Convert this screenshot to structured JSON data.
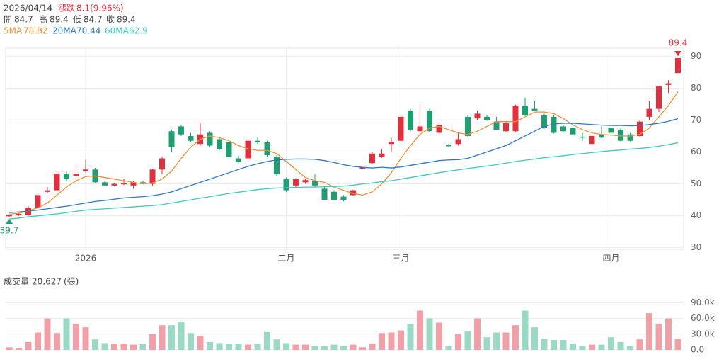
{
  "header": {
    "date": "2026/04/14",
    "change_label": "漲跌",
    "change": "8.1(9.96%)",
    "quote_labels": [
      "開",
      "高",
      "低",
      "收"
    ],
    "volume_title": "成交量",
    "volume_last": "20,627",
    "volume_unit": "(張)"
  },
  "chart_data": [
    {
      "type": "candlestick",
      "categories": [
        null,
        null,
        null,
        null,
        null,
        null,
        null,
        null,
        "2026",
        null,
        null,
        null,
        null,
        null,
        null,
        null,
        null,
        null,
        null,
        null,
        null,
        null,
        null,
        null,
        null,
        null,
        null,
        null,
        null,
        "二月",
        null,
        null,
        null,
        null,
        null,
        null,
        null,
        null,
        null,
        null,
        null,
        "三月",
        null,
        null,
        null,
        null,
        null,
        null,
        null,
        null,
        null,
        null,
        null,
        null,
        null,
        null,
        null,
        null,
        null,
        null,
        null,
        null,
        null,
        "四月",
        null,
        null,
        null,
        null,
        null,
        null,
        null
      ],
      "open": [
        40,
        40.2,
        40.2,
        42.5,
        47.5,
        48,
        53,
        52.5,
        54,
        54.5,
        50.5,
        49.5,
        50,
        49.5,
        50.5,
        50,
        54.5,
        66.5,
        68,
        65,
        62.5,
        66,
        64,
        63,
        58,
        58,
        63.5,
        63,
        58.5,
        51.5,
        49.5,
        50.5,
        51,
        48.5,
        47.5,
        46,
        46.5,
        54.8,
        56.5,
        58.5,
        62.5,
        63.5,
        73,
        66.5,
        73,
        66,
        62.2,
        62.5,
        71,
        70.5,
        71,
        69.5,
        66.5,
        66.5,
        74.5,
        73.5,
        71.5,
        71,
        68,
        67.5,
        64.8,
        62.5,
        65.5,
        67.5,
        67,
        65.5,
        65,
        71,
        73.5,
        81,
        84.7
      ],
      "high": [
        40.4,
        40.8,
        43,
        47,
        49,
        54,
        53.8,
        55,
        57.5,
        55,
        51,
        50.3,
        51.5,
        50.8,
        51,
        54.8,
        58.5,
        67,
        68.5,
        66,
        69,
        66.5,
        64.5,
        63.5,
        58.8,
        63.8,
        64.5,
        63.5,
        59,
        52,
        51.8,
        51.5,
        53,
        49,
        48,
        46.5,
        48.2,
        55.3,
        60,
        61,
        64.5,
        71.5,
        73.5,
        74.5,
        73.5,
        69,
        62.5,
        66,
        71.5,
        73,
        71.5,
        71,
        69.5,
        74.8,
        77,
        76,
        72,
        71.5,
        68.5,
        70,
        66,
        65.5,
        68,
        68.5,
        67.5,
        66,
        69.8,
        76,
        80.8,
        82.5,
        89.4
      ],
      "low": [
        39.7,
        40,
        40,
        42.3,
        47,
        47.8,
        51,
        52.2,
        53.5,
        50.3,
        49.3,
        49.2,
        49.6,
        48.5,
        50,
        49.5,
        53,
        60,
        65,
        63,
        62,
        61.5,
        60.5,
        58,
        56.5,
        57.5,
        62.5,
        58.5,
        52.5,
        47.5,
        49,
        50,
        49,
        45,
        44.8,
        44.5,
        46.3,
        54.5,
        56.3,
        58.2,
        60,
        63,
        66.5,
        66,
        66.3,
        65.5,
        61.5,
        62,
        64.8,
        70,
        69.8,
        66.8,
        66.3,
        66.2,
        71.3,
        72.8,
        67.3,
        65.8,
        66.3,
        65.3,
        63.5,
        62,
        64.3,
        65.8,
        63.3,
        63.3,
        64.8,
        70,
        72.5,
        78.5,
        84.7
      ],
      "close": [
        40.2,
        40.6,
        42.5,
        46.5,
        48,
        53,
        51.5,
        53,
        54.5,
        50.5,
        49.5,
        50,
        50.2,
        50.5,
        50.3,
        54.5,
        58,
        61.5,
        65.5,
        63.5,
        65.5,
        62,
        61,
        58.5,
        57,
        63.5,
        63,
        59,
        53,
        48,
        51.5,
        51.2,
        49.5,
        45,
        45,
        45,
        48,
        55.2,
        59.5,
        59.5,
        63.2,
        71,
        67,
        68,
        66.5,
        68.5,
        61.8,
        64,
        65,
        72,
        70,
        67,
        69,
        74.5,
        71.5,
        73,
        67.5,
        66,
        66.5,
        65.5,
        64.5,
        65,
        64.5,
        66,
        63.5,
        63.5,
        69.5,
        73.5,
        80.5,
        81.5,
        89.4
      ],
      "up_color": "#e0303e",
      "down_color": "#1f9e72",
      "series": [
        {
          "name": "5MA",
          "color": "#e8913a",
          "values": [
            40.5,
            40.8,
            41.5,
            42.5,
            44,
            46.5,
            49,
            51,
            52.3,
            52.5,
            52,
            51.5,
            51,
            50.5,
            50,
            50.3,
            51.5,
            54,
            58,
            61.5,
            64,
            65,
            64.5,
            63.5,
            62,
            61,
            60.5,
            60.5,
            59.5,
            57,
            54.5,
            52,
            51,
            50.5,
            49,
            48,
            47,
            46.5,
            47.5,
            50,
            53.5,
            58,
            62,
            65.5,
            67.5,
            68,
            67,
            66,
            65.5,
            66.5,
            68,
            69.5,
            69.5,
            69.5,
            71,
            72.5,
            72.5,
            72,
            70.5,
            68.5,
            67,
            66,
            65.5,
            65.3,
            65,
            65,
            65.5,
            67.5,
            71,
            74.5,
            78.82
          ]
        },
        {
          "name": "20MA",
          "color": "#2f78c4",
          "values": [
            41,
            41.2,
            41.5,
            41.8,
            42.2,
            42.6,
            43,
            43.5,
            44,
            44.5,
            44.8,
            45.2,
            45.6,
            45.8,
            46,
            46.3,
            46.8,
            47.5,
            48.5,
            49.5,
            50.5,
            51.5,
            52.5,
            53.5,
            54.5,
            55.5,
            56.3,
            57,
            57.5,
            57.7,
            57.8,
            57.8,
            57.7,
            57.3,
            56.7,
            56,
            55.5,
            55.2,
            55,
            55.2,
            55,
            55.3,
            55.8,
            56.3,
            56.8,
            57.3,
            57.5,
            57.6,
            58,
            59,
            60,
            61,
            62,
            63.5,
            65,
            66.5,
            68,
            68.8,
            69,
            69,
            68.8,
            68.6,
            68.4,
            68.3,
            68.3,
            68.2,
            68.3,
            68.6,
            69,
            69.6,
            70.44
          ]
        },
        {
          "name": "60MA",
          "color": "#3cc9c0",
          "values": [
            39,
            39.3,
            39.7,
            40,
            40.3,
            40.6,
            41,
            41.4,
            41.8,
            42,
            42.2,
            42.4,
            42.6,
            42.8,
            43,
            43.2,
            43.5,
            44,
            44.5,
            45,
            45.5,
            46,
            46.5,
            47,
            47.4,
            47.8,
            48.2,
            48.5,
            48.7,
            48.8,
            48.9,
            49,
            49,
            49.1,
            49.2,
            49.3,
            49.6,
            50,
            50.3,
            50.7,
            51,
            51.5,
            52,
            52.5,
            53,
            53.5,
            54,
            54.4,
            54.8,
            55.2,
            55.6,
            56,
            56.5,
            57,
            57.4,
            57.8,
            58.2,
            58.5,
            58.8,
            59.2,
            59.5,
            59.8,
            60.1,
            60.4,
            60.6,
            60.9,
            61.1,
            61.4,
            61.8,
            62.3,
            62.9
          ]
        }
      ],
      "ylim": [
        29.5,
        92.5
      ],
      "yticks": [
        30,
        40,
        50,
        60,
        70,
        80,
        90
      ],
      "grid": true
    },
    {
      "type": "bar",
      "values": [
        5000,
        3000,
        15000,
        33000,
        60000,
        32000,
        60000,
        50000,
        43000,
        20000,
        13000,
        12000,
        12000,
        10000,
        12000,
        30000,
        47000,
        47000,
        53000,
        32000,
        27000,
        15000,
        13000,
        12000,
        12000,
        10000,
        12000,
        34000,
        20000,
        13000,
        10000,
        10000,
        7000,
        7000,
        10000,
        8000,
        10000,
        5000,
        12000,
        32000,
        33000,
        37000,
        50000,
        75000,
        60000,
        52000,
        7000,
        30000,
        35000,
        60000,
        24000,
        33000,
        33000,
        47000,
        75000,
        43000,
        21000,
        19000,
        19000,
        12000,
        7000,
        10000,
        10000,
        24000,
        15000,
        8000,
        20000,
        70000,
        50000,
        60000,
        20627
      ],
      "up_color": "#f0a0a6",
      "down_color": "#9ad9c3",
      "ylim": [
        0,
        100000
      ],
      "yticks": [
        {
          "value": 0,
          "label": "0.0"
        },
        {
          "value": 30000,
          "label": "30.0k"
        },
        {
          "value": 60000,
          "label": "60.0k"
        },
        {
          "value": 90000,
          "label": "90.0k"
        }
      ],
      "grid": true
    }
  ]
}
